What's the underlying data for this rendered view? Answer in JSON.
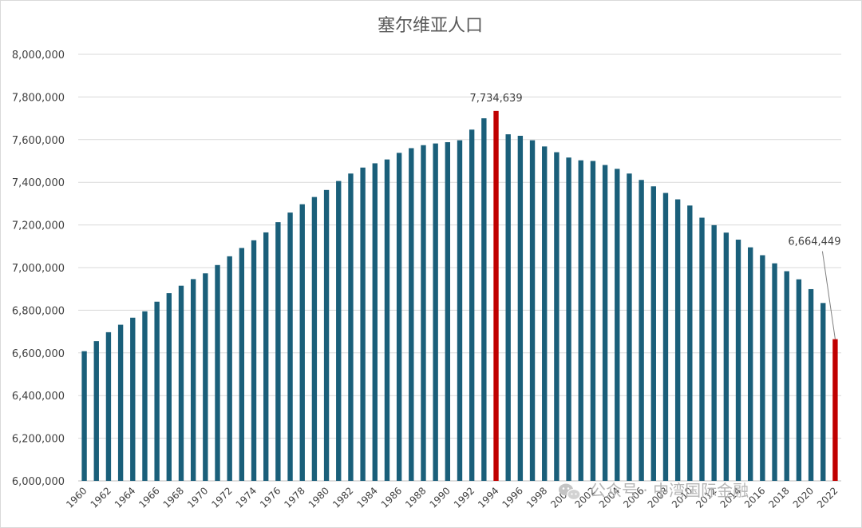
{
  "chart_data": {
    "type": "bar",
    "title": "塞尔维亚人口",
    "xlabel": "",
    "ylabel": "",
    "ylim": [
      6000000,
      8000000
    ],
    "yticks": [
      6000000,
      6200000,
      6400000,
      6600000,
      6800000,
      7000000,
      7200000,
      7400000,
      7600000,
      7800000,
      8000000
    ],
    "ytick_labels": [
      "6,000,000",
      "6,200,000",
      "6,400,000",
      "6,600,000",
      "6,800,000",
      "7,000,000",
      "7,200,000",
      "7,400,000",
      "7,600,000",
      "7,800,000",
      "8,000,000"
    ],
    "grid": true,
    "legend": "none",
    "categories": [
      1960,
      1961,
      1962,
      1963,
      1964,
      1965,
      1966,
      1967,
      1968,
      1969,
      1970,
      1971,
      1972,
      1973,
      1974,
      1975,
      1976,
      1977,
      1978,
      1979,
      1980,
      1981,
      1982,
      1983,
      1984,
      1985,
      1986,
      1987,
      1988,
      1989,
      1990,
      1991,
      1992,
      1993,
      1994,
      1995,
      1996,
      1997,
      1998,
      1999,
      2000,
      2001,
      2002,
      2003,
      2004,
      2005,
      2006,
      2007,
      2008,
      2009,
      2010,
      2011,
      2012,
      2013,
      2014,
      2015,
      2016,
      2017,
      2018,
      2019,
      2020,
      2021,
      2022
    ],
    "xtick_labels": [
      "1960",
      "1962",
      "1964",
      "1966",
      "1968",
      "1970",
      "1972",
      "1974",
      "1976",
      "1978",
      "1980",
      "1982",
      "1984",
      "1986",
      "1988",
      "1990",
      "1992",
      "1994",
      "1996",
      "1998",
      "2000",
      "2002",
      "2004",
      "2006",
      "2008",
      "2010",
      "2012",
      "2014",
      "2016",
      "2018",
      "2020",
      "2022"
    ],
    "values": [
      6608000,
      6655000,
      6697000,
      6732000,
      6765000,
      6795000,
      6840000,
      6880000,
      6915000,
      6946000,
      6973000,
      7012000,
      7053000,
      7092000,
      7128000,
      7165000,
      7213000,
      7258000,
      7297000,
      7331000,
      7364000,
      7406000,
      7441000,
      7469000,
      7489000,
      7507000,
      7538000,
      7560000,
      7574000,
      7582000,
      7588000,
      7597000,
      7647000,
      7700000,
      7734639,
      7625000,
      7618000,
      7597000,
      7568000,
      7541000,
      7516000,
      7503000,
      7500000,
      7481000,
      7463000,
      7441000,
      7411000,
      7381000,
      7350000,
      7320000,
      7291000,
      7234000,
      7199000,
      7164000,
      7131000,
      7095000,
      7058000,
      7020000,
      6983000,
      6945000,
      6899000,
      6834000,
      6664449
    ],
    "series_color": "#1a5f7a",
    "highlight_color": "#c00000",
    "highlight_indices": [
      34,
      62
    ],
    "annotations": [
      {
        "index": 34,
        "text": "7,734,639"
      },
      {
        "index": 62,
        "text": "6,664,449"
      }
    ]
  },
  "watermark": {
    "icon": "wechat-icon",
    "text": "公众号 · 中湾国际金融"
  }
}
